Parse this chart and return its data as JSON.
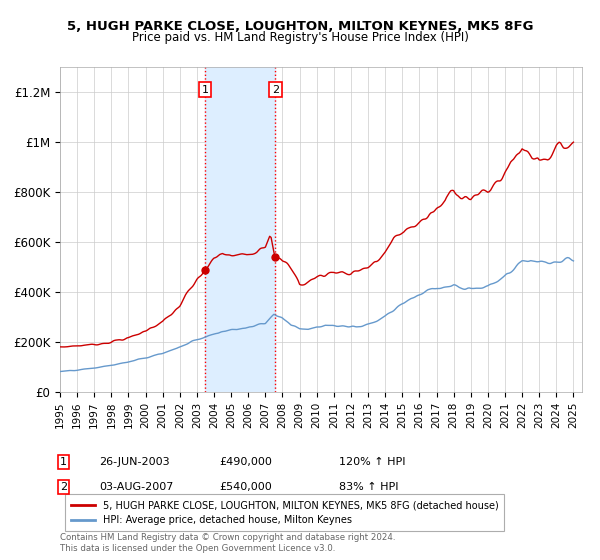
{
  "title1": "5, HUGH PARKE CLOSE, LOUGHTON, MILTON KEYNES, MK5 8FG",
  "title2": "Price paid vs. HM Land Registry's House Price Index (HPI)",
  "xlim_start": 1995.0,
  "xlim_end": 2025.5,
  "ylim": [
    0,
    1300000
  ],
  "yticks": [
    0,
    200000,
    400000,
    600000,
    800000,
    1000000,
    1200000
  ],
  "ytick_labels": [
    "£0",
    "£200K",
    "£400K",
    "£600K",
    "£800K",
    "£1M",
    "£1.2M"
  ],
  "purchase1_date": 2003.48,
  "purchase1_price": 490000,
  "purchase1_label": "1",
  "purchase2_date": 2007.58,
  "purchase2_price": 540000,
  "purchase2_label": "2",
  "line_color_property": "#cc0000",
  "line_color_hpi": "#6699cc",
  "legend_line1": "5, HUGH PARKE CLOSE, LOUGHTON, MILTON KEYNES, MK5 8FG (detached house)",
  "legend_line2": "HPI: Average price, detached house, Milton Keynes",
  "annotation1": [
    "1",
    "26-JUN-2003",
    "£490,000",
    "120% ↑ HPI"
  ],
  "annotation2": [
    "2",
    "03-AUG-2007",
    "£540,000",
    "83% ↑ HPI"
  ],
  "footer": "Contains HM Land Registry data © Crown copyright and database right 2024.\nThis data is licensed under the Open Government Licence v3.0.",
  "background_color": "#ffffff",
  "grid_color": "#cccccc",
  "shading_color": "#ddeeff"
}
